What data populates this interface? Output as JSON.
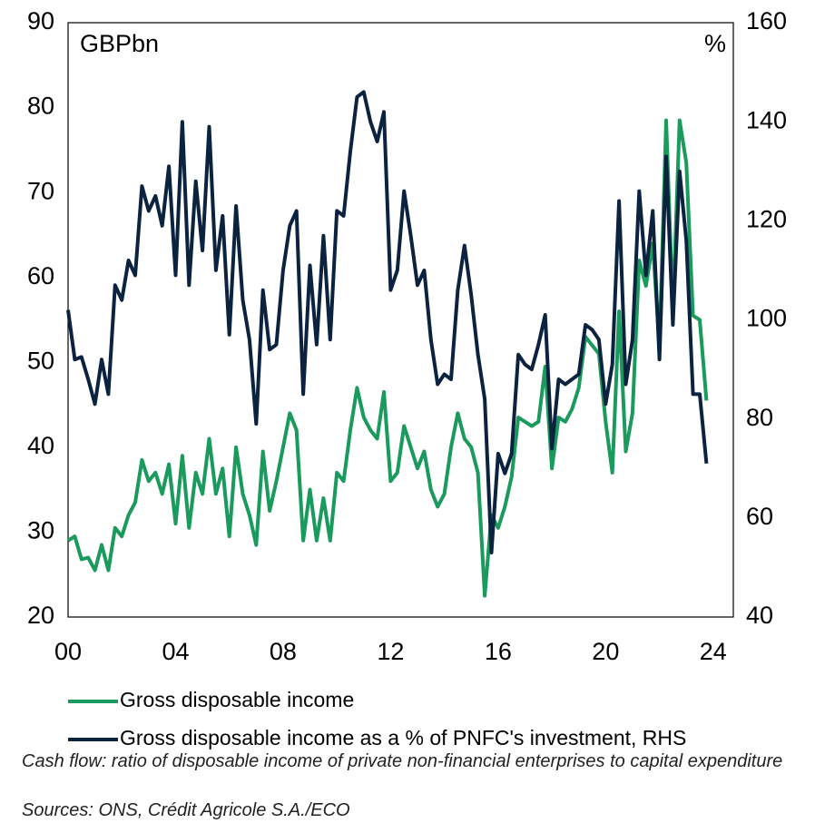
{
  "chart_data": {
    "type": "line",
    "left_unit": "GBPbn",
    "right_unit": "%",
    "x": [
      0,
      0.25,
      0.5,
      0.75,
      1,
      1.25,
      1.5,
      1.75,
      2,
      2.25,
      2.5,
      2.75,
      3,
      3.25,
      3.5,
      3.75,
      4,
      4.25,
      4.5,
      4.75,
      5,
      5.25,
      5.5,
      5.75,
      6,
      6.25,
      6.5,
      6.75,
      7,
      7.25,
      7.5,
      7.75,
      8,
      8.25,
      8.5,
      8.75,
      9,
      9.25,
      9.5,
      9.75,
      10,
      10.25,
      10.5,
      10.75,
      11,
      11.25,
      11.5,
      11.75,
      12,
      12.25,
      12.5,
      12.75,
      13,
      13.25,
      13.5,
      13.75,
      14,
      14.25,
      14.5,
      14.75,
      15,
      15.25,
      15.5,
      15.75,
      16,
      16.25,
      16.5,
      16.75,
      17,
      17.25,
      17.5,
      17.75,
      18,
      18.25,
      18.5,
      18.75,
      19,
      19.25,
      19.5,
      19.75,
      20,
      20.25,
      20.5,
      20.75,
      21,
      21.25,
      21.5,
      21.75,
      22,
      22.25,
      22.5,
      22.75,
      23,
      23.25,
      23.5,
      23.75
    ],
    "xlim": [
      0,
      24.75
    ],
    "xticks": [
      {
        "value": 0,
        "label": "00"
      },
      {
        "value": 4,
        "label": "04"
      },
      {
        "value": 8,
        "label": "08"
      },
      12,
      16,
      20,
      24
    ],
    "ylim": [
      20,
      90
    ],
    "yticks": [
      20,
      30,
      40,
      50,
      60,
      70,
      80,
      90
    ],
    "y2lim": [
      40,
      160
    ],
    "y2ticks": [
      40,
      60,
      80,
      100,
      120,
      140,
      160
    ],
    "series": [
      {
        "name": "Gross disposable income",
        "color": "#1a9a5c",
        "values": [
          29,
          29.5,
          26.8,
          27,
          25.5,
          28.5,
          25.5,
          30.5,
          29.5,
          32,
          33.5,
          38.5,
          36,
          37,
          34.5,
          38,
          31,
          39,
          30.5,
          37,
          34.5,
          41,
          34.5,
          37.5,
          29.5,
          40,
          34.5,
          32,
          28.5,
          39.5,
          32.5,
          36,
          40,
          44,
          42,
          29,
          35,
          29,
          34,
          29,
          37,
          36,
          42,
          47,
          43.5,
          42,
          41,
          46.5,
          36,
          37,
          42.5,
          40,
          37.5,
          39.5,
          35,
          33,
          34.5,
          40,
          44,
          41,
          40,
          37,
          22.5,
          32,
          30.5,
          33,
          36.5,
          43.5,
          43,
          42.5,
          43,
          49.5,
          37.5,
          43.5,
          43,
          44.5,
          47,
          53,
          52,
          51,
          43,
          37,
          56,
          39.5,
          44,
          62,
          59,
          64,
          52,
          78.5,
          56,
          78.5,
          73.5,
          55.5,
          55,
          45.5
        ]
      },
      {
        "name": "Gross disposable income as a % of PNFC's investment, RHS",
        "color": "#0c2340",
        "axis": "y2",
        "values": [
          102,
          92,
          92.5,
          88,
          83,
          92,
          85,
          107,
          104,
          112,
          109,
          127,
          122,
          125,
          119,
          131,
          109,
          140,
          107,
          128,
          114,
          139,
          110,
          121,
          97,
          123,
          104,
          96,
          79,
          106,
          94,
          95,
          110,
          119,
          122,
          85,
          111,
          95,
          117,
          96,
          122,
          121,
          134,
          145,
          146,
          140,
          136,
          142,
          106,
          110,
          126,
          117,
          107,
          110,
          96,
          87,
          89,
          88,
          106,
          115,
          105,
          93,
          84,
          53,
          73,
          69,
          73,
          93,
          91,
          90,
          95,
          101,
          74,
          88,
          87,
          88,
          89,
          99,
          98,
          96,
          83,
          91,
          124,
          87,
          96,
          126,
          109,
          122,
          92,
          133,
          99,
          130,
          116,
          85,
          85,
          71
        ]
      }
    ],
    "notes": [
      "Cash flow: ratio of disposable income of private non-financial enterprises to capital expenditure",
      "Sources: ONS, Crédit Agricole S.A./ECO"
    ]
  }
}
